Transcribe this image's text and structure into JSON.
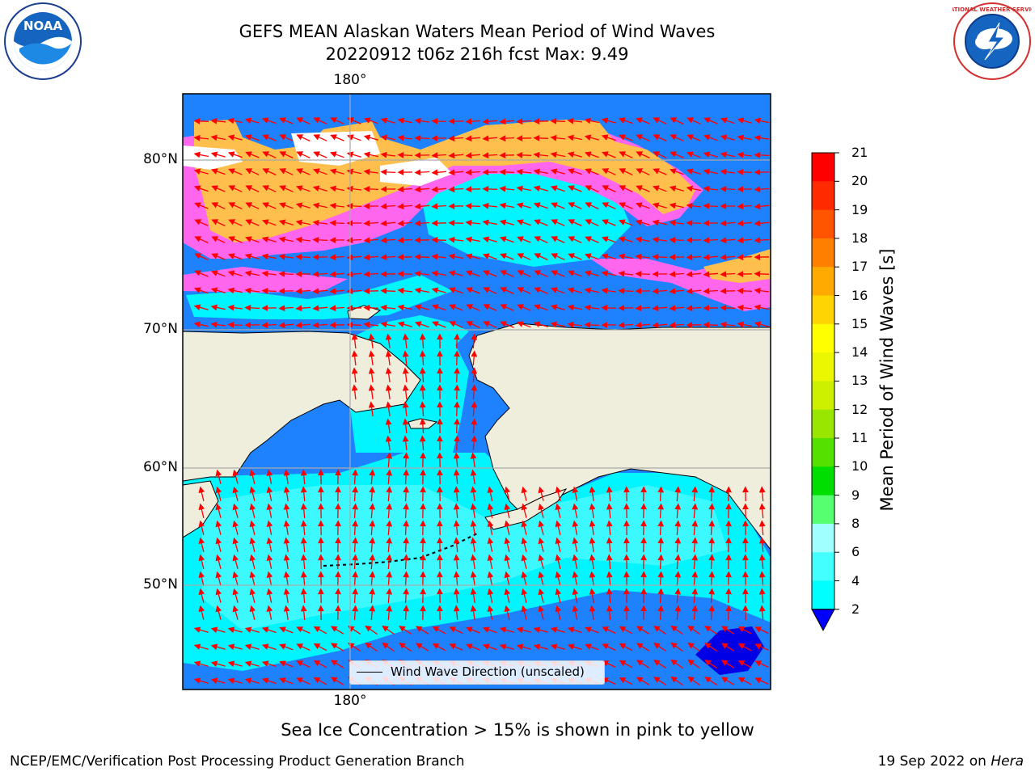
{
  "title": {
    "line1": "GEFS MEAN Alaskan Waters Mean Period of Wind Waves",
    "line2": "20220912 t06z 216h fcst   Max: 9.49"
  },
  "map": {
    "top_lon_label": "180°",
    "bottom_lon_label": "180°",
    "lat_labels": [
      "80°N",
      "70°N",
      "60°N",
      "50°N"
    ],
    "legend_label": "Wind Wave Direction (unscaled)",
    "colors": {
      "land": "#efeedd",
      "ocean_2_4": "#1e82ff",
      "ocean_4_6": "#00f5ff",
      "ocean_6_8": "#3cf8ff",
      "deep_blue": "#0000e6",
      "arrow": "#ff0000",
      "ice_pink": "#ff66ee",
      "ice_orange": "#ffbf4d"
    }
  },
  "colorbar": {
    "title": "Mean Period of Wind Waves [s]",
    "ticks": [
      "21",
      "20",
      "19",
      "18",
      "17",
      "16",
      "15",
      "14",
      "13",
      "12",
      "11",
      "10",
      "9",
      "8",
      "6",
      "4",
      "2"
    ],
    "colors": [
      "#ff0000",
      "#ff2a00",
      "#ff5500",
      "#ff7f00",
      "#ffaa00",
      "#ffd400",
      "#ffff00",
      "#ebf700",
      "#ccf000",
      "#99e600",
      "#55e000",
      "#00dd00",
      "#55ff70",
      "#a0ffff",
      "#44ffff",
      "#00ffff",
      "#1e82ff"
    ],
    "under_color": "#0000ff"
  },
  "caption": "Sea Ice Concentration > 15% is shown in pink to yellow",
  "footer": {
    "left": "NCEP/EMC/Verification Post Processing Product Generation Branch",
    "right_prefix": "19 Sep 2022 on ",
    "right_host": "Hera"
  },
  "logos": {
    "noaa_text": "NOAA",
    "nws_text": "NATIONAL WEATHER SERVICE"
  }
}
